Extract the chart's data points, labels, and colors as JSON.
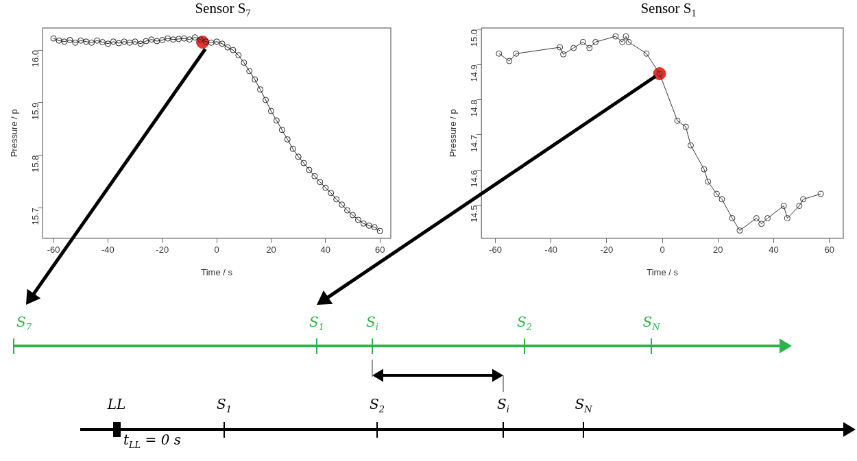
{
  "chart_data": [
    {
      "type": "line",
      "title": "Sensor S$_{7}$",
      "xlabel": "Time / s",
      "ylabel": "Pressure / p",
      "xlim": [
        -64,
        64
      ],
      "xticks": [
        -60,
        -40,
        -20,
        0,
        20,
        40,
        60
      ],
      "ylim": [
        15.642,
        16.042
      ],
      "yticks": [
        15.7,
        15.8,
        15.9,
        {
          "value": 16,
          "label": "16.0"
        }
      ],
      "grid": false,
      "legend": false,
      "marker": "circle",
      "series": [
        {
          "color": "#222222",
          "x": [
            -60,
            -58,
            -56,
            -54,
            -52,
            -50,
            -48,
            -46,
            -44,
            -42,
            -40,
            -38,
            -36,
            -34,
            -32,
            -30,
            -28,
            -26,
            -24,
            -22,
            -20,
            -18,
            -16,
            -14,
            -12,
            -10,
            -8,
            -6,
            -4,
            -2,
            0,
            2,
            4,
            6,
            8,
            10,
            12,
            14,
            16,
            18,
            20,
            22,
            24,
            26,
            28,
            30,
            32,
            34,
            36,
            38,
            40,
            42,
            44,
            46,
            48,
            50,
            52,
            54,
            56,
            58,
            60
          ],
          "values": [
            16.022,
            16.018,
            16.016,
            16.019,
            16.014,
            16.018,
            16.016,
            16.014,
            16.018,
            16.015,
            16.012,
            16.016,
            16.013,
            16.016,
            16.014,
            16.016,
            16.012,
            16.017,
            16.02,
            16.017,
            16.019,
            16.022,
            16.02,
            16.021,
            16.022,
            16.02,
            16.024,
            16.02,
            16.016,
            16.014,
            16.016,
            16.012,
            16.005,
            16.0,
            15.99,
            15.976,
            15.96,
            15.944,
            15.925,
            15.905,
            15.884,
            15.866,
            15.848,
            15.83,
            15.812,
            15.797,
            15.785,
            15.772,
            15.76,
            15.749,
            15.738,
            15.728,
            15.716,
            15.706,
            15.695,
            15.686,
            15.677,
            15.67,
            15.666,
            15.663,
            15.656
          ]
        },
        {
          "type": "scatter",
          "color": "#e8322e",
          "x": [
            -5.2
          ],
          "values": [
            16.015
          ]
        }
      ]
    },
    {
      "type": "line",
      "title": "Sensor S$_{1}$",
      "xlabel": "Time / s",
      "ylabel": "Pressure / p",
      "xlim": [
        -65,
        65
      ],
      "xticks": [
        -60,
        -40,
        -20,
        0,
        20,
        40,
        60
      ],
      "ylim": [
        14.406,
        15.004
      ],
      "yticks": [
        14.5,
        14.6,
        14.7,
        14.8,
        14.9,
        {
          "value": 15,
          "label": "15.0"
        }
      ],
      "grid": false,
      "legend": false,
      "marker": "circle",
      "series": [
        {
          "color": "#333333",
          "x": [
            -58.7,
            -55,
            -52.5,
            -36.8,
            -35.6,
            -31.9,
            -28.5,
            -26.2,
            -24,
            -16.8,
            -14.4,
            -13.1,
            -12.1,
            -5.7,
            -1,
            5.4,
            8.4,
            10.2,
            15,
            16.4,
            19.5,
            21.4,
            25.1,
            27.8,
            33.8,
            35.6,
            37.8,
            43.6,
            44.9,
            49.2,
            50.6,
            56.9
          ],
          "values": [
            14.931,
            14.91,
            14.931,
            14.949,
            14.929,
            14.947,
            14.964,
            14.947,
            14.964,
            14.98,
            14.964,
            14.98,
            14.964,
            14.931,
            14.874,
            14.74,
            14.723,
            14.67,
            14.602,
            14.567,
            14.532,
            14.517,
            14.463,
            14.428,
            14.463,
            14.447,
            14.463,
            14.498,
            14.463,
            14.498,
            14.517,
            14.532
          ]
        },
        {
          "type": "scatter",
          "color": "#e8322e",
          "x": [
            -1
          ],
          "values": [
            14.874
          ]
        }
      ]
    },
    {
      "type": "other",
      "annotations": [
        "S$_{7}$",
        "S$_{1}$",
        "S$_{i}$",
        "S$_{2}$",
        "S$_{N}$",
        "LL",
        "S$_{1}$",
        "S$_{2}$",
        "S$_{i}$",
        "S$_{N}$",
        "t$_{LL}$ = 0 s"
      ]
    }
  ]
}
